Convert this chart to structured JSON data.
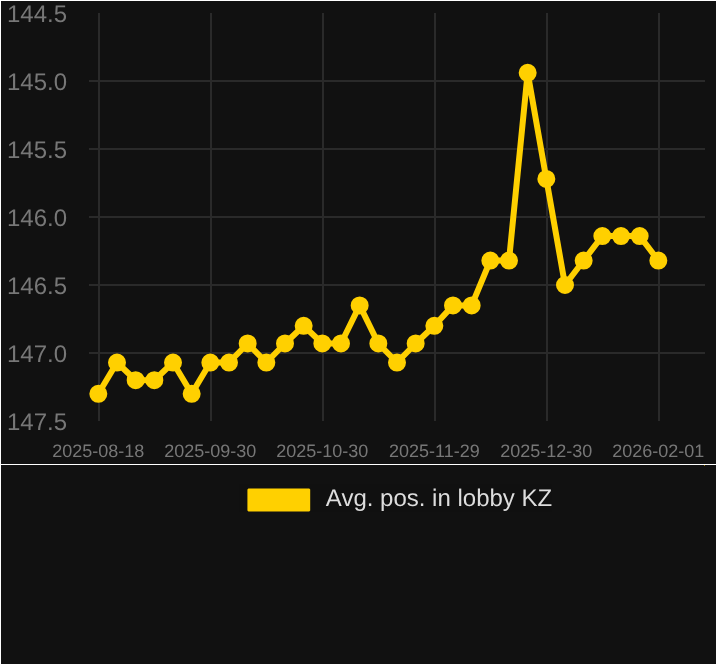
{
  "chart_data": {
    "type": "line",
    "categories": [
      "2025-08-18",
      null,
      null,
      null,
      null,
      null,
      "2025-09-30",
      null,
      null,
      null,
      null,
      null,
      "2025-10-30",
      null,
      null,
      null,
      null,
      null,
      "2025-11-29",
      null,
      null,
      null,
      null,
      null,
      "2025-12-30",
      null,
      null,
      null,
      null,
      null,
      "2026-02-01"
    ],
    "series": [
      {
        "name": "Avg. pos. in lobby KZ",
        "color": "#ffd000",
        "values": [
          147.3,
          147.07,
          147.2,
          147.2,
          147.07,
          147.3,
          147.07,
          147.07,
          146.93,
          147.07,
          146.93,
          146.8,
          146.93,
          146.93,
          146.65,
          146.93,
          147.07,
          146.93,
          146.8,
          146.65,
          146.65,
          146.32,
          146.32,
          144.94,
          145.72,
          146.5,
          146.32,
          146.14,
          146.14,
          146.14,
          146.32
        ]
      }
    ],
    "ylim": [
      147.5,
      144.5
    ],
    "yticks": [
      144.5,
      {
        "value": 145,
        "label": "145.0"
      },
      145.5,
      {
        "value": 146,
        "label": "146.0"
      },
      146.5,
      {
        "value": 147,
        "label": "147.0"
      },
      147.5
    ],
    "grid": true,
    "legend": "bottom",
    "marker": "circle",
    "line_style": "solid"
  }
}
